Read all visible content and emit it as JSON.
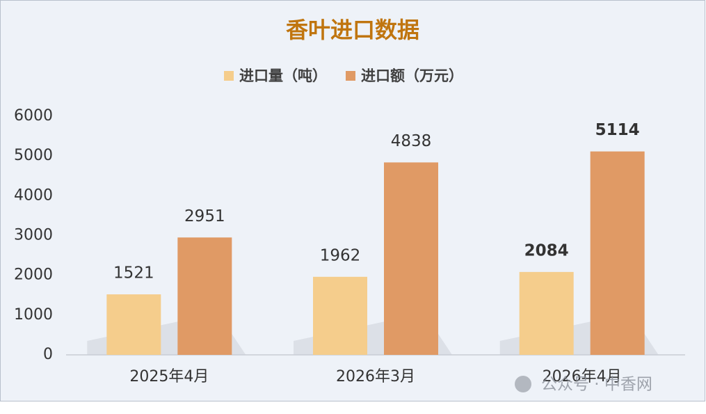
{
  "chart_data": {
    "type": "bar",
    "title": "香叶进口数据",
    "categories": [
      "2025年4月",
      "2026年3月",
      "2026年4月"
    ],
    "series": [
      {
        "name": "进口量（吨）",
        "color": "#f5cd8c",
        "values": [
          1521,
          1962,
          2084
        ]
      },
      {
        "name": "进口额（万元）",
        "color": "#e09a65",
        "values": [
          2951,
          4838,
          5114
        ]
      }
    ],
    "ylim": [
      0,
      6000
    ],
    "yticks": [
      0,
      1000,
      2000,
      3000,
      4000,
      5000,
      6000
    ],
    "grid": false,
    "legend": "top",
    "watermark": "公众号 · 中香网"
  }
}
